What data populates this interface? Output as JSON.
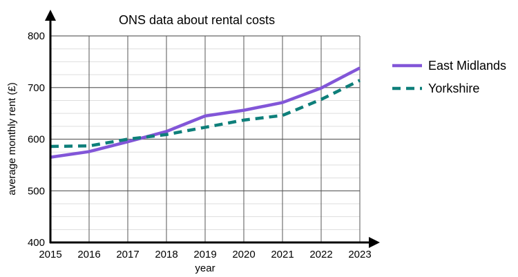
{
  "chart_data": {
    "type": "line",
    "title": "ONS data about rental costs",
    "xlabel": "year",
    "ylabel": "average monthly rent (£)",
    "x": [
      2015,
      2016,
      2017,
      2018,
      2019,
      2020,
      2021,
      2022,
      2023
    ],
    "x_tick_labels": [
      "2015",
      "2016",
      "2017",
      "2018",
      "2019",
      "2020",
      "2021",
      "2022",
      "2023"
    ],
    "ylim": [
      400,
      800
    ],
    "y_ticks": [
      400,
      500,
      600,
      700,
      800
    ],
    "y_tick_labels": [
      "400",
      "500",
      "600",
      "700",
      "800"
    ],
    "y_minor_step": 25,
    "grid": true,
    "legend_position": "right",
    "series": [
      {
        "name": "East Midlands",
        "color": "#8256d8",
        "style": "solid",
        "values": [
          565,
          576,
          595,
          615,
          645,
          656,
          671,
          699,
          738
        ]
      },
      {
        "name": "Yorkshire",
        "color": "#0e7f7a",
        "style": "dashed",
        "values": [
          586,
          587,
          600,
          609,
          623,
          637,
          646,
          677,
          714
        ]
      }
    ]
  }
}
